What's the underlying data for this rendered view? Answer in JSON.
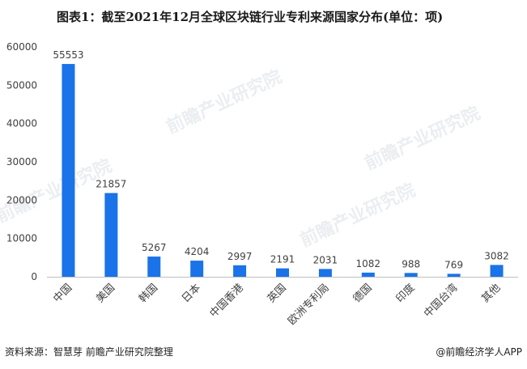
{
  "title": "图表1：截至2021年12月全球区块链行业专利来源国家分布(单位：项)",
  "footer": {
    "source": "资料来源：智慧芽 前瞻产业研究院整理",
    "brand": "@前瞻经济学人APP"
  },
  "watermark": "前瞻产业研究院",
  "colors": {
    "bar": "#1a73e8",
    "axis": "#bfbfbf",
    "text": "#404040"
  },
  "chart_data": {
    "type": "bar",
    "title": "图表1：截至2021年12月全球区块链行业专利来源国家分布(单位：项)",
    "categories": [
      "中国",
      "美国",
      "韩国",
      "日本",
      "中国香港",
      "英国",
      "欧洲专利局",
      "德国",
      "印度",
      "中国台湾",
      "其他"
    ],
    "values": [
      55553,
      21857,
      5267,
      4204,
      2997,
      2191,
      2031,
      1082,
      988,
      769,
      3082
    ],
    "ylim": [
      0,
      60000
    ],
    "yticks": [
      0,
      10000,
      20000,
      30000,
      40000,
      50000,
      60000
    ],
    "xlabel": "",
    "ylabel": "",
    "grid": false,
    "legend": "none"
  }
}
